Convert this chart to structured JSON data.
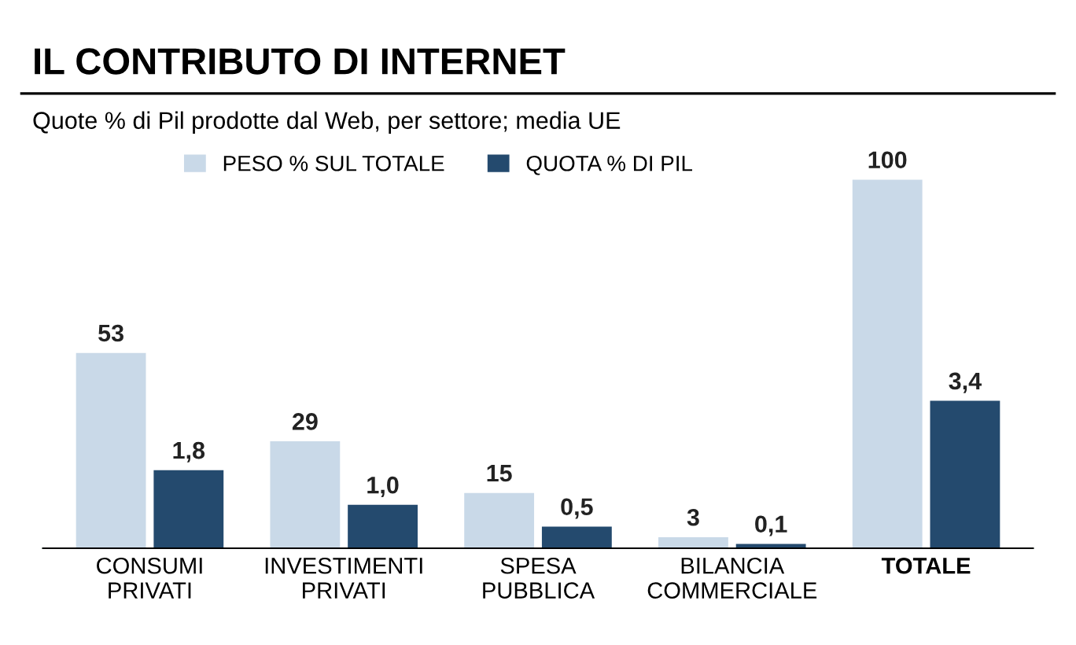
{
  "chart_data": {
    "type": "bar",
    "title": "IL CONTRIBUTO DI INTERNET",
    "subtitle": "Quote % di Pil prodotte dal Web, per settore; media UE",
    "categories": [
      "CONSUMI\nPRIVATI",
      "INVESTIMENTI\nPRIVATI",
      "SPESA\nPUBBLICA",
      "BILANCIA\nCOMMERCIALE",
      "TOTALE"
    ],
    "series": [
      {
        "name": "PESO % SUL TOTALE",
        "color": "#c9d9e8",
        "values": [
          53,
          29,
          15,
          3,
          100
        ],
        "value_labels": [
          "53",
          "29",
          "15",
          "3",
          "100"
        ]
      },
      {
        "name": "QUOTA % DI PIL",
        "color": "#244a6e",
        "values": [
          1.8,
          1.0,
          0.5,
          0.1,
          3.4
        ],
        "value_labels": [
          "1,8",
          "1,0",
          "0,5",
          "0,1",
          "3,4"
        ],
        "axis": "y2"
      }
    ],
    "legend": "top"
  }
}
